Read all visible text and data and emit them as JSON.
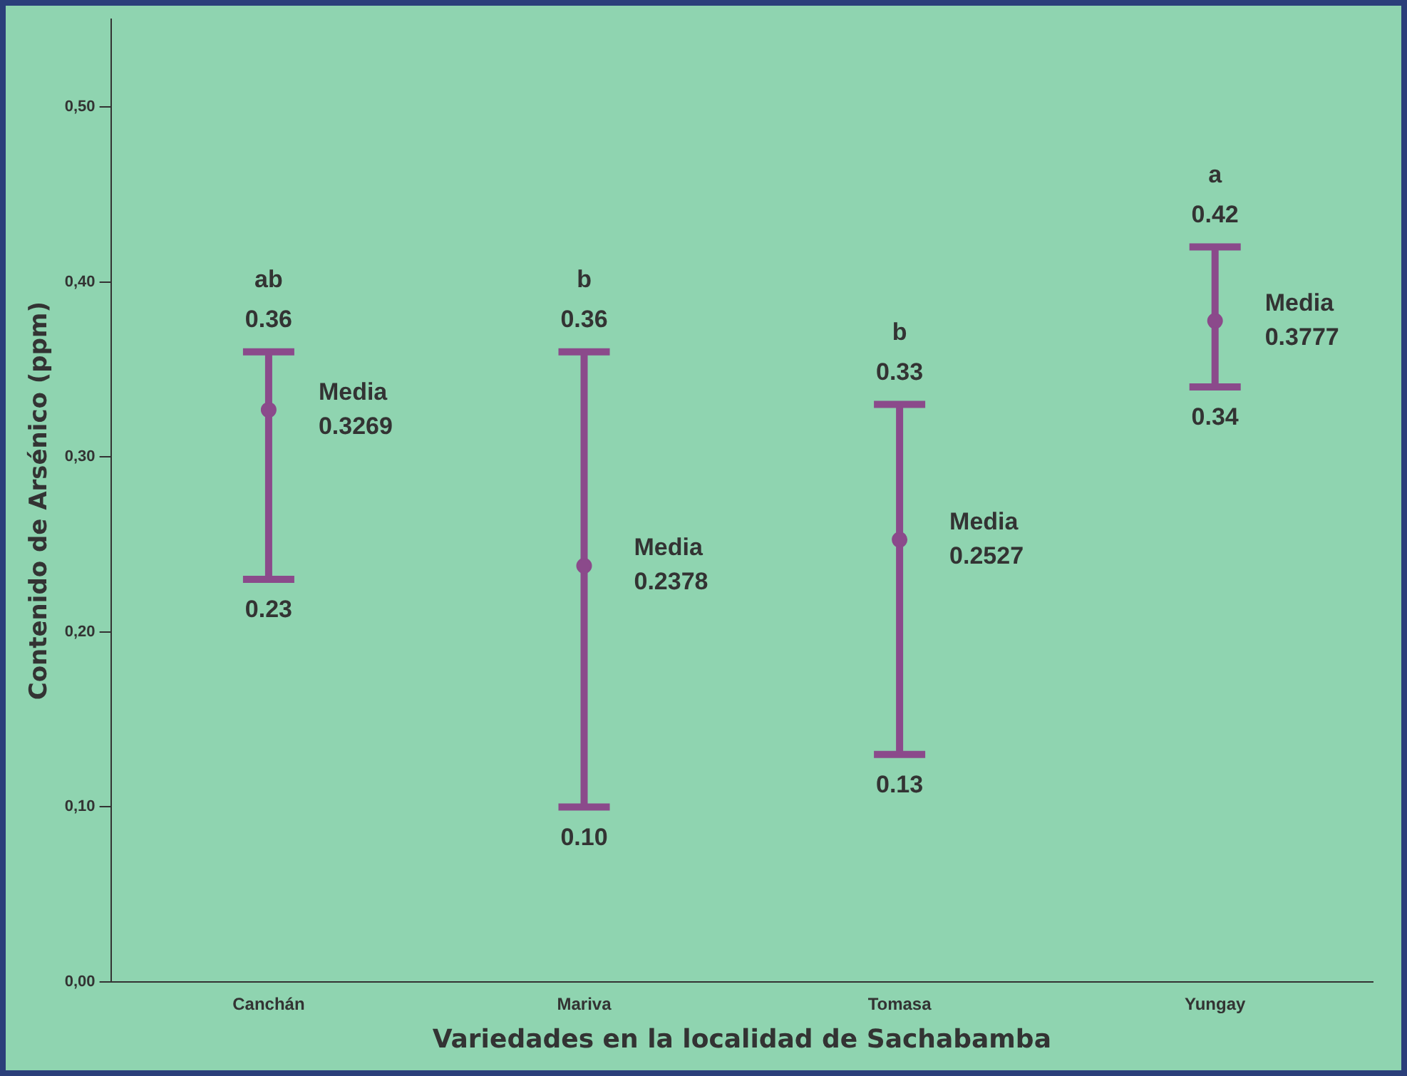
{
  "chart_data": {
    "type": "scatter",
    "xlabel": "Variedades en la localidad de Sachabamba",
    "ylabel": "Contenido de Arsénico (ppm)",
    "categories": [
      "Canchán",
      "Mariva",
      "Tomasa",
      "Yungay"
    ],
    "series": [
      {
        "color": "#8b4a8b",
        "values": [
          0.3269,
          0.2378,
          0.2527,
          0.3777
        ],
        "errors": [
          [
            0.23,
            0.36
          ],
          [
            0.1,
            0.36
          ],
          [
            0.13,
            0.33
          ],
          [
            0.34,
            0.42
          ]
        ]
      }
    ],
    "ylim": [
      0,
      0.55
    ],
    "yticks": [
      {
        "value": 0,
        "label": "0,00"
      },
      {
        "value": 0.1,
        "label": "0,10"
      },
      {
        "value": 0.2,
        "label": "0,20"
      },
      {
        "value": 0.3,
        "label": "0,30"
      },
      {
        "value": 0.4,
        "label": "0,40"
      },
      {
        "value": 0.5,
        "label": "0,50"
      }
    ],
    "grid": false,
    "legend": false,
    "marker": "circle",
    "annotations": [
      {
        "text": "ab",
        "x": "Canchán",
        "y": 0.36
      },
      {
        "text": "0.36",
        "x": "Canchán",
        "y": 0.36
      },
      {
        "text": "0.23",
        "x": "Canchán",
        "y": 0.23
      },
      {
        "text": "Media\n0.3269",
        "x": "Canchán",
        "y": 0.3269
      },
      {
        "text": "b",
        "x": "Mariva",
        "y": 0.36
      },
      {
        "text": "0.36",
        "x": "Mariva",
        "y": 0.36
      },
      {
        "text": "0.10",
        "x": "Mariva",
        "y": 0.1
      },
      {
        "text": "Media\n0.2378",
        "x": "Mariva",
        "y": 0.2378
      },
      {
        "text": "b",
        "x": "Tomasa",
        "y": 0.33
      },
      {
        "text": "0.33",
        "x": "Tomasa",
        "y": 0.33
      },
      {
        "text": "0.13",
        "x": "Tomasa",
        "y": 0.13
      },
      {
        "text": "Media\n0.2527",
        "x": "Tomasa",
        "y": 0.2527
      },
      {
        "text": "a",
        "x": "Yungay",
        "y": 0.42
      },
      {
        "text": "0.42",
        "x": "Yungay",
        "y": 0.42
      },
      {
        "text": "0.34",
        "x": "Yungay",
        "y": 0.34
      },
      {
        "text": "Media\n0.3777",
        "x": "Yungay",
        "y": 0.3777
      }
    ]
  }
}
